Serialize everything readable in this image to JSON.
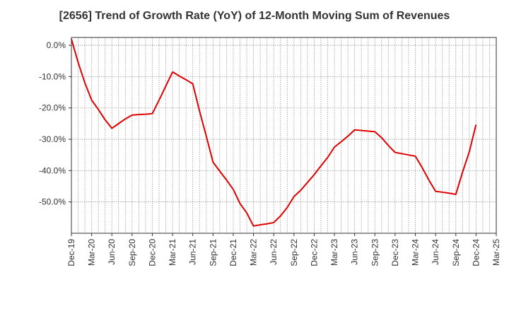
{
  "chart_data": {
    "type": "line",
    "title": "[2656]  Trend of Growth Rate (YoY) of 12-Month Moving Sum of Revenues",
    "xlabel": "",
    "ylabel": "",
    "x_tick_labels": [
      "Dec-19",
      "Mar-20",
      "Jun-20",
      "Sep-20",
      "Dec-20",
      "Mar-21",
      "Jun-21",
      "Sep-21",
      "Dec-21",
      "Mar-22",
      "Jun-22",
      "Sep-22",
      "Dec-22",
      "Mar-23",
      "Jun-23",
      "Sep-23",
      "Dec-23",
      "Mar-24",
      "Jun-24",
      "Sep-24",
      "Dec-24",
      "Mar-25"
    ],
    "y_ticks": [
      0,
      -10,
      -20,
      -30,
      -40,
      -50
    ],
    "y_tick_labels": [
      "0.0%",
      "-10.0%",
      "-20.0%",
      "-30.0%",
      "-40.0%",
      "-50.0%"
    ],
    "ylim": [
      -60,
      2.5
    ],
    "x_months_per_tick": 3,
    "grid": true,
    "series": [
      {
        "color": "#e00000",
        "x": [
          "Dec-19",
          "Jan-20",
          "Feb-20",
          "Mar-20",
          "Apr-20",
          "May-20",
          "Jun-20",
          "Jul-20",
          "Aug-20",
          "Sep-20",
          "Oct-20",
          "Nov-20",
          "Dec-20",
          "Jan-21",
          "Feb-21",
          "Mar-21",
          "Apr-21",
          "May-21",
          "Jun-21",
          "Jul-21",
          "Aug-21",
          "Sep-21",
          "Oct-21",
          "Nov-21",
          "Dec-21",
          "Jan-22",
          "Feb-22",
          "Mar-22",
          "Apr-22",
          "May-22",
          "Jun-22",
          "Jul-22",
          "Aug-22",
          "Sep-22",
          "Oct-22",
          "Nov-22",
          "Dec-22",
          "Jan-23",
          "Feb-23",
          "Mar-23",
          "Apr-23",
          "May-23",
          "Jun-23",
          "Jul-23",
          "Aug-23",
          "Sep-23",
          "Oct-23",
          "Nov-23",
          "Dec-23",
          "Jan-24",
          "Feb-24",
          "Mar-24",
          "Apr-24",
          "May-24",
          "Jun-24",
          "Jul-24",
          "Aug-24",
          "Sep-24",
          "Oct-24",
          "Nov-24",
          "Dec-24"
        ],
        "values": [
          2.0,
          -5.5,
          -12.0,
          -17.5,
          -20.5,
          -23.8,
          -26.5,
          -25.0,
          -23.5,
          -22.3,
          -22.1,
          -22.0,
          -21.8,
          -17.5,
          -13.0,
          -8.5,
          -9.8,
          -11.0,
          -12.3,
          -21.0,
          -29.0,
          -37.3,
          -40.2,
          -43.0,
          -46.0,
          -50.5,
          -53.5,
          -57.7,
          -57.3,
          -57.0,
          -56.6,
          -54.5,
          -51.8,
          -48.3,
          -46.3,
          -43.8,
          -41.3,
          -38.5,
          -35.8,
          -32.5,
          -30.8,
          -29.0,
          -27.0,
          -27.2,
          -27.4,
          -27.6,
          -29.5,
          -32.0,
          -34.2,
          -34.6,
          -35.0,
          -35.4,
          -39.0,
          -43.0,
          -46.6,
          -46.9,
          -47.2,
          -47.6,
          -40.5,
          -34.0,
          -25.3
        ]
      }
    ]
  }
}
